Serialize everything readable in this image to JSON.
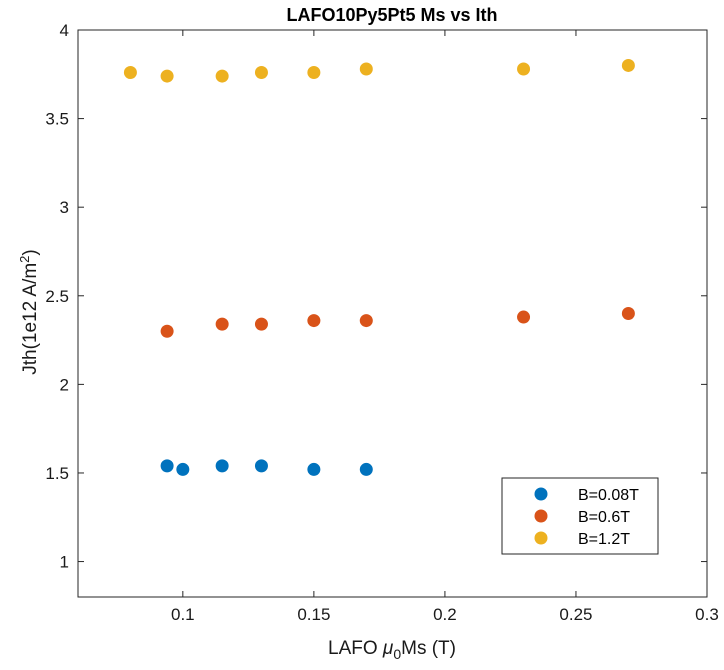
{
  "chart_data": {
    "type": "scatter",
    "title": "LAFO10Py5Pt5 Ms vs Ith",
    "xlabel": {
      "prefix": "LAFO ",
      "mu": "μ",
      "sub": "0",
      "suffix": "Ms (T)"
    },
    "ylabel": {
      "main": "Jth(1e12 A/m",
      "sup": "2",
      "close": ")"
    },
    "xlim": [
      0.06,
      0.3
    ],
    "ylim": [
      0.8,
      4
    ],
    "xticks": [
      0.1,
      0.15,
      0.2,
      0.25,
      0.3
    ],
    "xtick_labels": [
      "0.1",
      "0.15",
      "0.2",
      "0.25",
      "0.3"
    ],
    "yticks": [
      1,
      1.5,
      2,
      2.5,
      3,
      3.5,
      4
    ],
    "ytick_labels": [
      "1",
      "1.5",
      "2",
      "2.5",
      "3",
      "3.5",
      "4"
    ],
    "grid": false,
    "legend_position": "bottom-right",
    "series": [
      {
        "name": "B=0.08T",
        "color": "#0072BD",
        "points": [
          [
            0.094,
            1.54
          ],
          [
            0.1,
            1.52
          ],
          [
            0.115,
            1.54
          ],
          [
            0.13,
            1.54
          ],
          [
            0.15,
            1.52
          ],
          [
            0.17,
            1.52
          ]
        ]
      },
      {
        "name": "B=0.6T",
        "color": "#D95319",
        "points": [
          [
            0.094,
            2.3
          ],
          [
            0.115,
            2.34
          ],
          [
            0.13,
            2.34
          ],
          [
            0.15,
            2.36
          ],
          [
            0.17,
            2.36
          ],
          [
            0.23,
            2.38
          ],
          [
            0.27,
            2.4
          ]
        ]
      },
      {
        "name": "B=1.2T",
        "color": "#EDB120",
        "points": [
          [
            0.08,
            3.76
          ],
          [
            0.094,
            3.74
          ],
          [
            0.115,
            3.74
          ],
          [
            0.13,
            3.76
          ],
          [
            0.15,
            3.76
          ],
          [
            0.17,
            3.78
          ],
          [
            0.23,
            3.78
          ],
          [
            0.27,
            3.8
          ]
        ]
      }
    ]
  }
}
